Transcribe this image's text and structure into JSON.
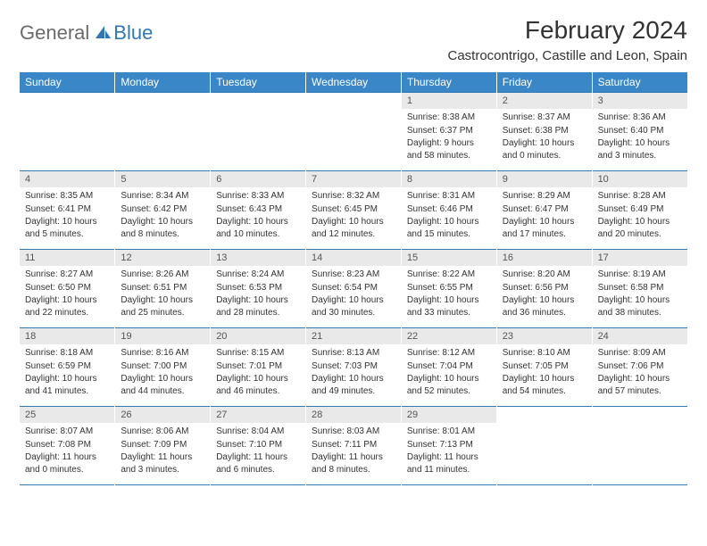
{
  "logo": {
    "general": "General",
    "blue": "Blue"
  },
  "title": "February 2024",
  "location": "Castrocontrigo, Castille and Leon, Spain",
  "colors": {
    "header_bg": "#3a87c8",
    "header_text": "#ffffff",
    "divider": "#2f77b5",
    "daynum_bg": "#e9e9e9",
    "logo_blue": "#2f77b5",
    "logo_gray": "#6b6b6b"
  },
  "day_headers": [
    "Sunday",
    "Monday",
    "Tuesday",
    "Wednesday",
    "Thursday",
    "Friday",
    "Saturday"
  ],
  "weeks": [
    [
      null,
      null,
      null,
      null,
      {
        "n": "1",
        "sunrise": "8:38 AM",
        "sunset": "6:37 PM",
        "daylight": "9 hours and 58 minutes."
      },
      {
        "n": "2",
        "sunrise": "8:37 AM",
        "sunset": "6:38 PM",
        "daylight": "10 hours and 0 minutes."
      },
      {
        "n": "3",
        "sunrise": "8:36 AM",
        "sunset": "6:40 PM",
        "daylight": "10 hours and 3 minutes."
      }
    ],
    [
      {
        "n": "4",
        "sunrise": "8:35 AM",
        "sunset": "6:41 PM",
        "daylight": "10 hours and 5 minutes."
      },
      {
        "n": "5",
        "sunrise": "8:34 AM",
        "sunset": "6:42 PM",
        "daylight": "10 hours and 8 minutes."
      },
      {
        "n": "6",
        "sunrise": "8:33 AM",
        "sunset": "6:43 PM",
        "daylight": "10 hours and 10 minutes."
      },
      {
        "n": "7",
        "sunrise": "8:32 AM",
        "sunset": "6:45 PM",
        "daylight": "10 hours and 12 minutes."
      },
      {
        "n": "8",
        "sunrise": "8:31 AM",
        "sunset": "6:46 PM",
        "daylight": "10 hours and 15 minutes."
      },
      {
        "n": "9",
        "sunrise": "8:29 AM",
        "sunset": "6:47 PM",
        "daylight": "10 hours and 17 minutes."
      },
      {
        "n": "10",
        "sunrise": "8:28 AM",
        "sunset": "6:49 PM",
        "daylight": "10 hours and 20 minutes."
      }
    ],
    [
      {
        "n": "11",
        "sunrise": "8:27 AM",
        "sunset": "6:50 PM",
        "daylight": "10 hours and 22 minutes."
      },
      {
        "n": "12",
        "sunrise": "8:26 AM",
        "sunset": "6:51 PM",
        "daylight": "10 hours and 25 minutes."
      },
      {
        "n": "13",
        "sunrise": "8:24 AM",
        "sunset": "6:53 PM",
        "daylight": "10 hours and 28 minutes."
      },
      {
        "n": "14",
        "sunrise": "8:23 AM",
        "sunset": "6:54 PM",
        "daylight": "10 hours and 30 minutes."
      },
      {
        "n": "15",
        "sunrise": "8:22 AM",
        "sunset": "6:55 PM",
        "daylight": "10 hours and 33 minutes."
      },
      {
        "n": "16",
        "sunrise": "8:20 AM",
        "sunset": "6:56 PM",
        "daylight": "10 hours and 36 minutes."
      },
      {
        "n": "17",
        "sunrise": "8:19 AM",
        "sunset": "6:58 PM",
        "daylight": "10 hours and 38 minutes."
      }
    ],
    [
      {
        "n": "18",
        "sunrise": "8:18 AM",
        "sunset": "6:59 PM",
        "daylight": "10 hours and 41 minutes."
      },
      {
        "n": "19",
        "sunrise": "8:16 AM",
        "sunset": "7:00 PM",
        "daylight": "10 hours and 44 minutes."
      },
      {
        "n": "20",
        "sunrise": "8:15 AM",
        "sunset": "7:01 PM",
        "daylight": "10 hours and 46 minutes."
      },
      {
        "n": "21",
        "sunrise": "8:13 AM",
        "sunset": "7:03 PM",
        "daylight": "10 hours and 49 minutes."
      },
      {
        "n": "22",
        "sunrise": "8:12 AM",
        "sunset": "7:04 PM",
        "daylight": "10 hours and 52 minutes."
      },
      {
        "n": "23",
        "sunrise": "8:10 AM",
        "sunset": "7:05 PM",
        "daylight": "10 hours and 54 minutes."
      },
      {
        "n": "24",
        "sunrise": "8:09 AM",
        "sunset": "7:06 PM",
        "daylight": "10 hours and 57 minutes."
      }
    ],
    [
      {
        "n": "25",
        "sunrise": "8:07 AM",
        "sunset": "7:08 PM",
        "daylight": "11 hours and 0 minutes."
      },
      {
        "n": "26",
        "sunrise": "8:06 AM",
        "sunset": "7:09 PM",
        "daylight": "11 hours and 3 minutes."
      },
      {
        "n": "27",
        "sunrise": "8:04 AM",
        "sunset": "7:10 PM",
        "daylight": "11 hours and 6 minutes."
      },
      {
        "n": "28",
        "sunrise": "8:03 AM",
        "sunset": "7:11 PM",
        "daylight": "11 hours and 8 minutes."
      },
      {
        "n": "29",
        "sunrise": "8:01 AM",
        "sunset": "7:13 PM",
        "daylight": "11 hours and 11 minutes."
      },
      null,
      null
    ]
  ],
  "labels": {
    "sunrise": "Sunrise:",
    "sunset": "Sunset:",
    "daylight": "Daylight:"
  }
}
